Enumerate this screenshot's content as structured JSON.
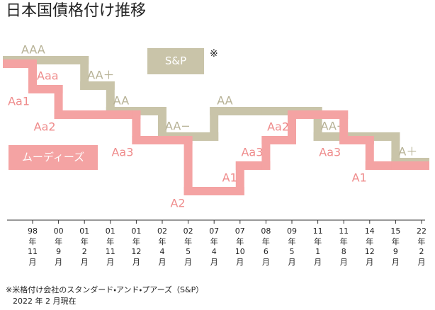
{
  "chart_data": {
    "type": "step",
    "title": "日本国債格付け推移",
    "categories": [
      "98年11月",
      "00年9月",
      "01年2月",
      "01年11月",
      "01年12月",
      "02年4月",
      "02年5月",
      "07年4月",
      "07年10月",
      "08年6月",
      "09年5月",
      "11年1月",
      "11年8月",
      "14年12月",
      "15年9月",
      "22年2月"
    ],
    "series": [
      {
        "name": "S&P",
        "color": "#c9c4a9",
        "label_color": "#b7b296",
        "note_mark": "※",
        "scale": [
          "AAA",
          "AA＋",
          "AA",
          "AA−",
          "A＋"
        ],
        "start": "AAA",
        "values": [
          "AAA",
          "AAA",
          "AA＋",
          "AA",
          "AA",
          "AA−",
          "AA−",
          "AA",
          "AA",
          "AA",
          "AA",
          "AA−",
          "AA−",
          "AA−",
          "A＋",
          "A＋"
        ]
      },
      {
        "name": "ムーディーズ",
        "color": "#f4a3a3",
        "label_color": "#ef8c8c",
        "scale": [
          "Aaa",
          "Aa1",
          "Aa2",
          "Aa3",
          "A1",
          "A2"
        ],
        "start": "Aaa",
        "values": [
          "Aa1",
          "Aa2",
          "Aa2",
          "Aa2",
          "Aa3",
          "Aa3",
          "A2",
          "A2",
          "A1",
          "Aa3",
          "Aa2",
          "Aa2",
          "Aa3",
          "A1",
          "A1",
          "A1"
        ]
      }
    ],
    "footnotes": [
      "※米格付け会社のスタンダード・アンド・プアーズ（S&P）",
      "2022 年 2 月現在"
    ]
  }
}
